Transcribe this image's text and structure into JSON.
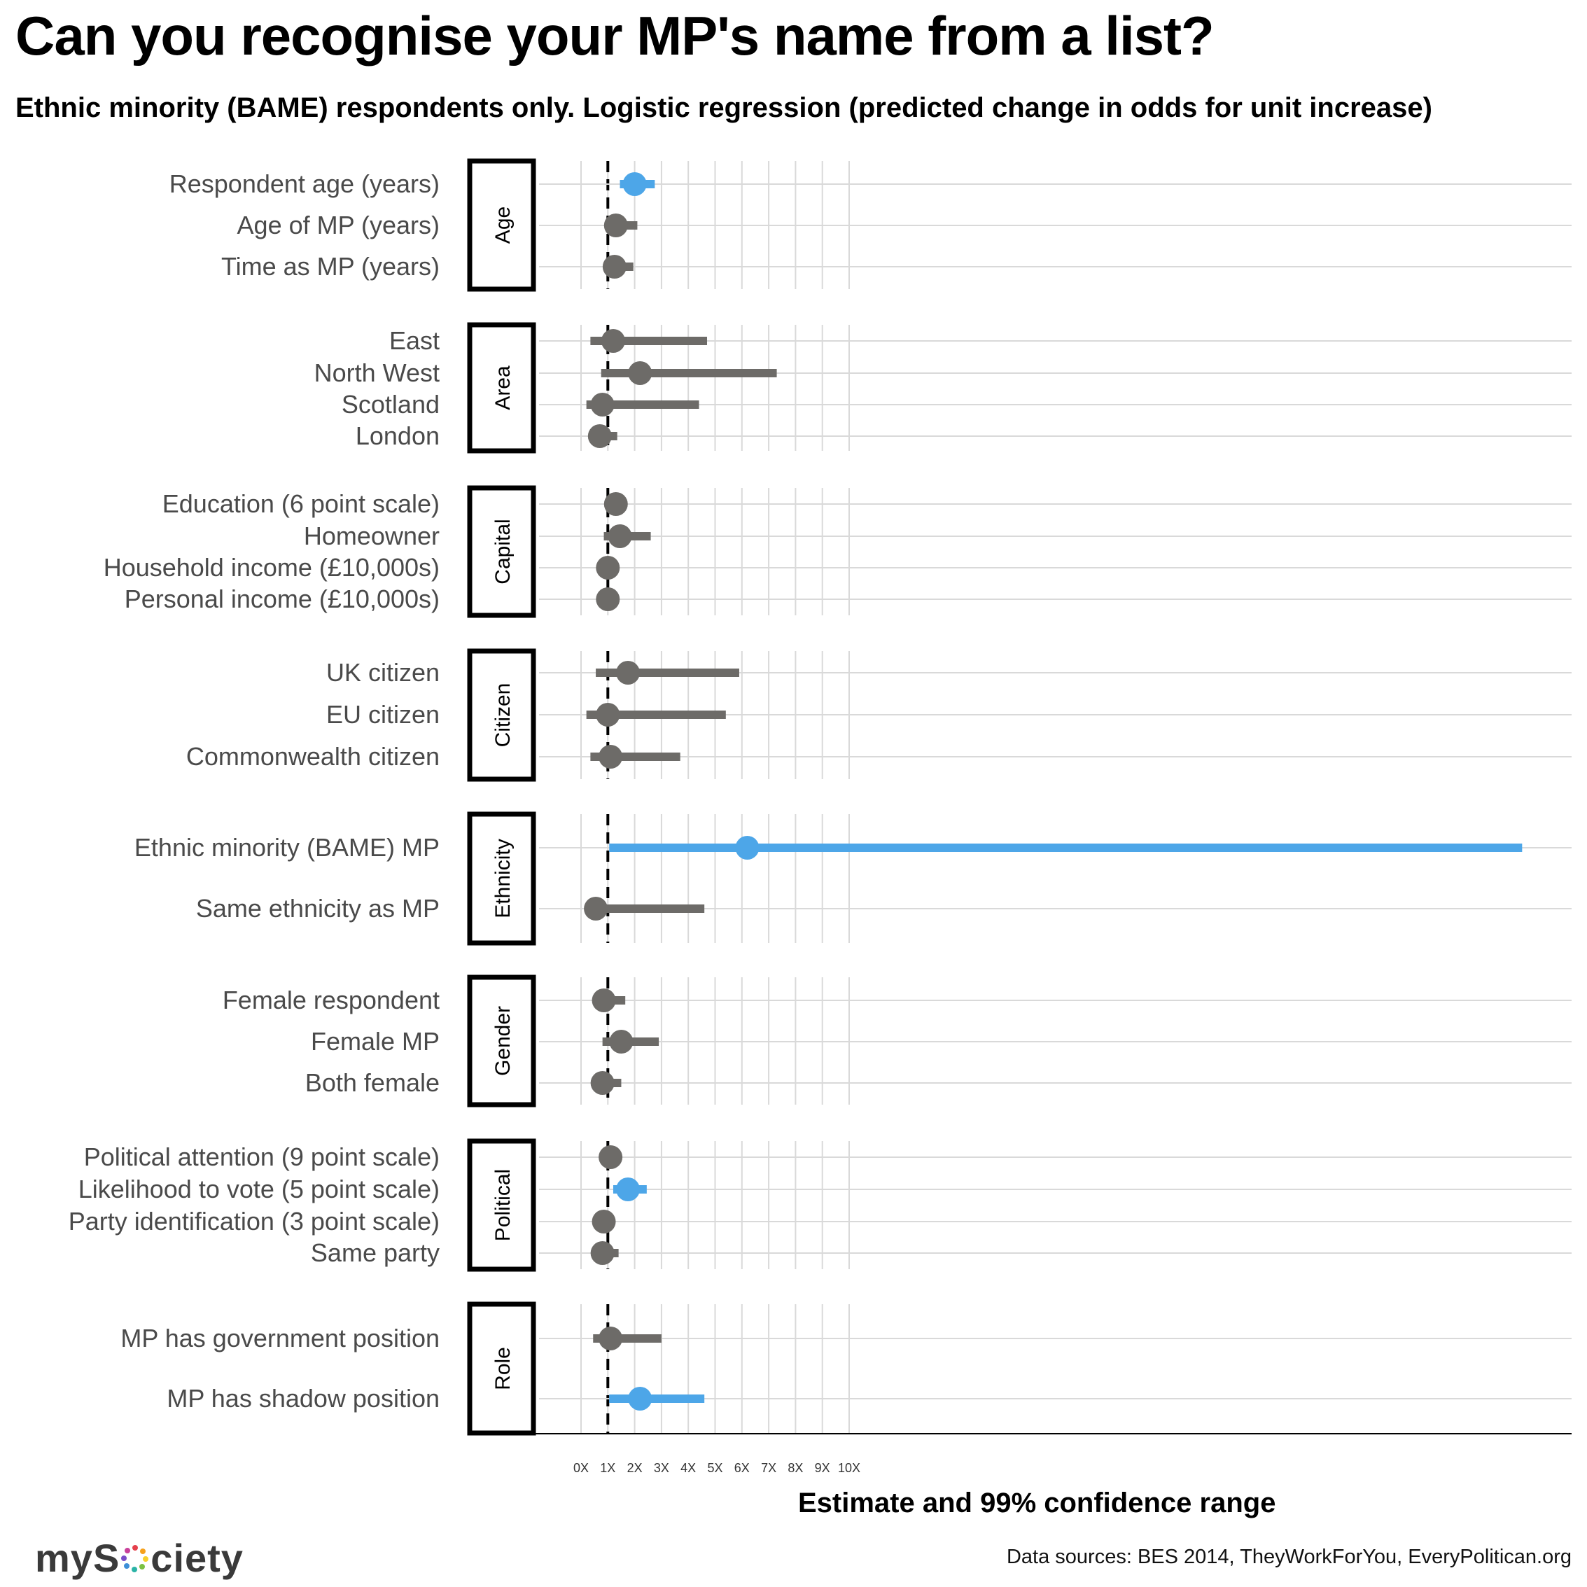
{
  "title": "Can you recognise your MP's name from a list?",
  "subtitle": "Ethnic minority (BAME) respondents only. Logistic regression (predicted change in odds for unit increase)",
  "source": "Data sources: BES 2014, TheyWorkForYou, EveryPolitican.org",
  "logo": {
    "text_left": "myS",
    "text_right": "ciety",
    "alt": "mySociety"
  },
  "colors": {
    "significant": "#4da6e8",
    "not_significant": "#6d6b68",
    "reference_line": "#000000",
    "grid": "#d9d9d9"
  },
  "chart_data": {
    "type": "dot-and-interval",
    "xlabel": "Estimate and 99% confidence range",
    "ylabel": "",
    "x_ticks": [
      "0X",
      "1X",
      "2X",
      "3X",
      "4X",
      "5X",
      "6X",
      "7X",
      "8X",
      "9X",
      "10X"
    ],
    "xlim": [
      0,
      36
    ],
    "reference_value": 1,
    "grid": "vertical 0–10, horizontal per row",
    "groups": [
      {
        "name": "Age",
        "rows": [
          {
            "label": "Respondent age (years)",
            "estimate": 2.0,
            "low": 1.45,
            "high": 2.75,
            "significant": true
          },
          {
            "label": "Age of MP (years)",
            "estimate": 1.3,
            "low": 0.95,
            "high": 2.1,
            "significant": false
          },
          {
            "label": "Time as MP (years)",
            "estimate": 1.25,
            "low": 0.95,
            "high": 1.95,
            "significant": false
          }
        ]
      },
      {
        "name": "Area",
        "rows": [
          {
            "label": "East",
            "estimate": 1.2,
            "low": 0.35,
            "high": 4.7,
            "significant": false
          },
          {
            "label": "North West",
            "estimate": 2.2,
            "low": 0.75,
            "high": 7.3,
            "significant": false
          },
          {
            "label": "Scotland",
            "estimate": 0.8,
            "low": 0.2,
            "high": 4.4,
            "significant": false
          },
          {
            "label": "London",
            "estimate": 0.7,
            "low": 0.4,
            "high": 1.35,
            "significant": false
          }
        ]
      },
      {
        "name": "Capital",
        "rows": [
          {
            "label": "Education (6 point scale)",
            "estimate": 1.3,
            "low": 1.05,
            "high": 1.6,
            "significant": false
          },
          {
            "label": "Homeowner",
            "estimate": 1.45,
            "low": 0.85,
            "high": 2.6,
            "significant": false
          },
          {
            "label": "Household income (£10,000s)",
            "estimate": 1.0,
            "low": 0.85,
            "high": 1.15,
            "significant": false
          },
          {
            "label": "Personal income (£10,000s)",
            "estimate": 1.0,
            "low": 0.85,
            "high": 1.15,
            "significant": false
          }
        ]
      },
      {
        "name": "Citizen",
        "rows": [
          {
            "label": "UK citizen",
            "estimate": 1.75,
            "low": 0.55,
            "high": 5.9,
            "significant": false
          },
          {
            "label": "EU citizen",
            "estimate": 1.0,
            "low": 0.2,
            "high": 5.4,
            "significant": false
          },
          {
            "label": "Commonwealth citizen",
            "estimate": 1.1,
            "low": 0.35,
            "high": 3.7,
            "significant": false
          }
        ]
      },
      {
        "name": "Ethnicity",
        "rows": [
          {
            "label": "Ethnic minority (BAME) MP",
            "estimate": 6.2,
            "low": 1.05,
            "high": 35.1,
            "significant": true
          },
          {
            "label": "Same ethnicity as MP",
            "estimate": 0.55,
            "low": 0.5,
            "high": 4.6,
            "significant": false
          }
        ]
      },
      {
        "name": "Gender",
        "rows": [
          {
            "label": "Female respondent",
            "estimate": 0.85,
            "low": 0.6,
            "high": 1.65,
            "significant": false
          },
          {
            "label": "Female MP",
            "estimate": 1.5,
            "low": 0.8,
            "high": 2.9,
            "significant": false
          },
          {
            "label": "Both female",
            "estimate": 0.8,
            "low": 0.55,
            "high": 1.5,
            "significant": false
          }
        ]
      },
      {
        "name": "Political",
        "rows": [
          {
            "label": "Political attention (9 point scale)",
            "estimate": 1.1,
            "low": 0.95,
            "high": 1.25,
            "significant": false
          },
          {
            "label": "Likelihood to vote (5 point scale)",
            "estimate": 1.75,
            "low": 1.2,
            "high": 2.45,
            "significant": true
          },
          {
            "label": "Party identification (3 point scale)",
            "estimate": 0.85,
            "low": 0.7,
            "high": 1.0,
            "significant": false
          },
          {
            "label": "Same party",
            "estimate": 0.8,
            "low": 0.55,
            "high": 1.4,
            "significant": false
          }
        ]
      },
      {
        "name": "Role",
        "rows": [
          {
            "label": "MP has government position",
            "estimate": 1.1,
            "low": 0.45,
            "high": 3.0,
            "significant": false
          },
          {
            "label": "MP has shadow position",
            "estimate": 2.2,
            "low": 1.05,
            "high": 4.6,
            "significant": true
          }
        ]
      }
    ]
  }
}
